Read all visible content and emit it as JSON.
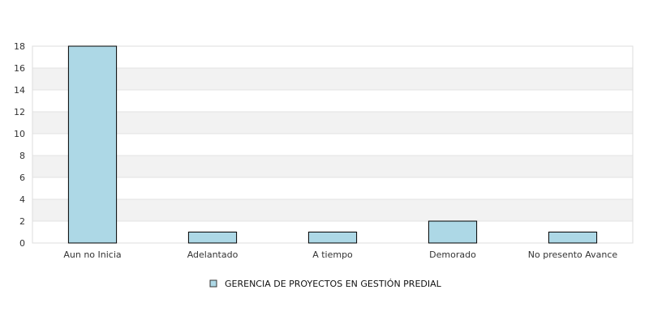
{
  "chart_data": {
    "type": "bar",
    "categories": [
      "Aun no Inicia",
      "Adelantado",
      "A tiempo",
      "Demorado",
      "No presento Avance"
    ],
    "series": [
      {
        "name": "GERENCIA DE PROYECTOS EN GESTIÓN PREDIAL",
        "values": [
          18,
          1,
          1,
          2,
          1
        ],
        "color": "#add8e6"
      }
    ],
    "ylim": [
      0,
      18
    ],
    "yticks": [
      0,
      2,
      4,
      6,
      8,
      10,
      12,
      14,
      16,
      18
    ],
    "grid": true,
    "band_color": "#f2f2f2",
    "legend_position": "bottom-center",
    "title": "",
    "xlabel": "",
    "ylabel": ""
  }
}
